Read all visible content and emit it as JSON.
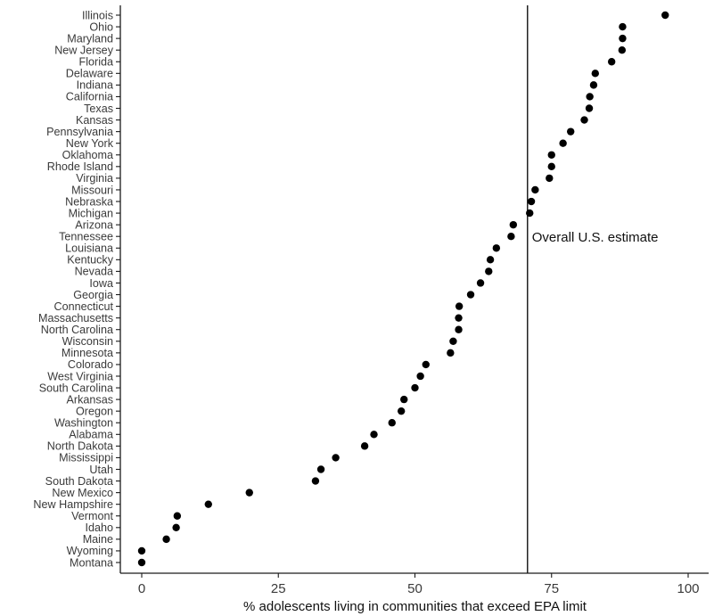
{
  "chart_data": {
    "type": "scatter",
    "title": "",
    "xlabel": "% adolescents living in communities that exceed EPA limit",
    "ylabel": "",
    "xlim": [
      -4,
      104
    ],
    "xticks": [
      0,
      25,
      50,
      75,
      100
    ],
    "grid": false,
    "legend": "none",
    "point_color": "#000000",
    "categories": [
      "Illinois",
      "Ohio",
      "Maryland",
      "New Jersey",
      "Florida",
      "Delaware",
      "Indiana",
      "California",
      "Texas",
      "Kansas",
      "Pennsylvania",
      "New York",
      "Oklahoma",
      "Rhode Island",
      "Virginia",
      "Missouri",
      "Nebraska",
      "Michigan",
      "Arizona",
      "Tennessee",
      "Louisiana",
      "Kentucky",
      "Nevada",
      "Iowa",
      "Georgia",
      "Connecticut",
      "Massachusetts",
      "North Carolina",
      "Wisconsin",
      "Minnesota",
      "Colorado",
      "West Virginia",
      "South Carolina",
      "Arkansas",
      "Oregon",
      "Washington",
      "Alabama",
      "North Dakota",
      "Mississippi",
      "Utah",
      "South Dakota",
      "New Mexico",
      "New Hampshire",
      "Vermont",
      "Idaho",
      "Maine",
      "Wyoming",
      "Montana"
    ],
    "values": [
      95.8,
      88.0,
      88.0,
      87.9,
      86.0,
      83.0,
      82.7,
      82.0,
      81.9,
      81.0,
      78.5,
      77.1,
      75.0,
      75.0,
      74.6,
      72.0,
      71.3,
      71.0,
      68.0,
      67.6,
      64.9,
      63.8,
      63.5,
      62.0,
      60.2,
      58.1,
      58.0,
      58.0,
      57.0,
      56.5,
      52.0,
      51.0,
      50.0,
      48.0,
      47.5,
      45.8,
      42.5,
      40.8,
      35.5,
      32.8,
      31.8,
      19.7,
      12.2,
      6.5,
      6.3,
      4.5,
      0.0,
      0.0
    ],
    "reference_line": {
      "value": 70.6,
      "label": "Overall U.S. estimate"
    }
  }
}
